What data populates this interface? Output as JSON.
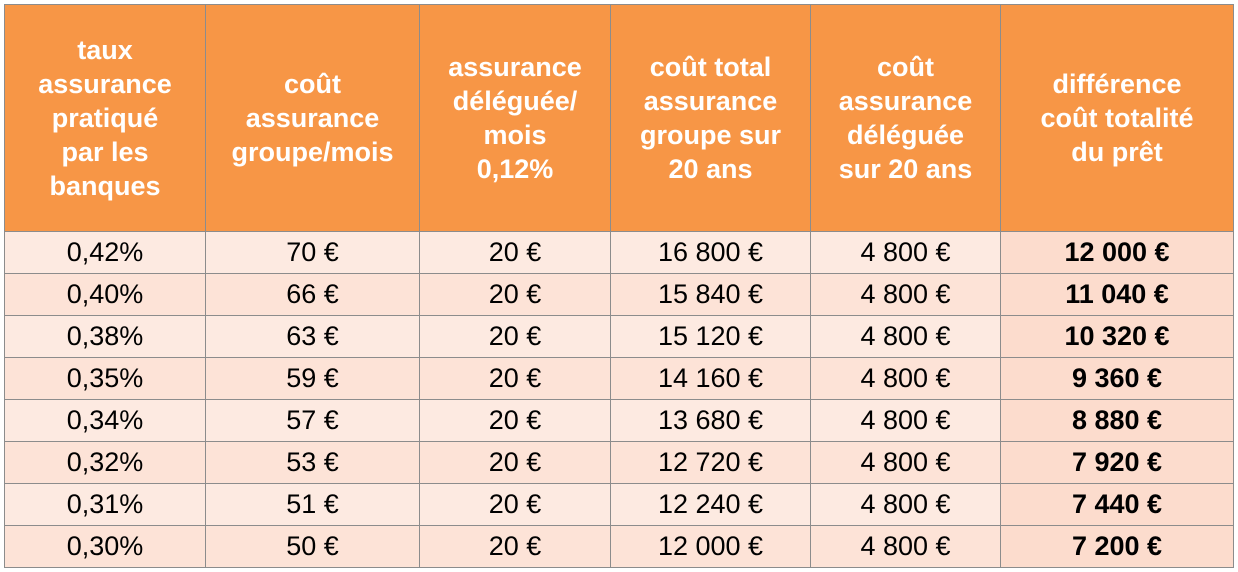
{
  "table": {
    "header": [
      [
        "taux",
        "assurance",
        "pratiqué",
        "par les",
        "banques"
      ],
      [
        "coût",
        "assurance",
        "groupe/mois"
      ],
      [
        "assurance",
        "déléguée/",
        "mois",
        "0,12%"
      ],
      [
        "coût total",
        "assurance",
        "groupe sur",
        "20 ans"
      ],
      [
        "coût",
        "assurance",
        "déléguée",
        "sur 20 ans"
      ],
      [
        "différence",
        "coût totalité",
        "du prêt"
      ]
    ],
    "rows": [
      [
        "0,42%",
        "70 €",
        "20 €",
        "16 800 €",
        "4 800 €",
        "12 000 €"
      ],
      [
        "0,40%",
        "66 €",
        "20 €",
        "15 840 €",
        "4 800 €",
        "11 040 €"
      ],
      [
        "0,38%",
        "63 €",
        "20 €",
        "15 120 €",
        "4 800 €",
        "10 320 €"
      ],
      [
        "0,35%",
        "59 €",
        "20 €",
        "14 160 €",
        "4 800 €",
        "9 360 €"
      ],
      [
        "0,34%",
        "57 €",
        "20 €",
        "13 680 €",
        "4 800 €",
        "8 880 €"
      ],
      [
        "0,32%",
        "53 €",
        "20 €",
        "12 720 €",
        "4 800 €",
        "7 920 €"
      ],
      [
        "0,31%",
        "51 €",
        "20 €",
        "12 240 €",
        "4 800 €",
        "7 440 €"
      ],
      [
        "0,30%",
        "50 €",
        "20 €",
        "12 000 €",
        "4 800 €",
        "7 200 €"
      ]
    ]
  }
}
